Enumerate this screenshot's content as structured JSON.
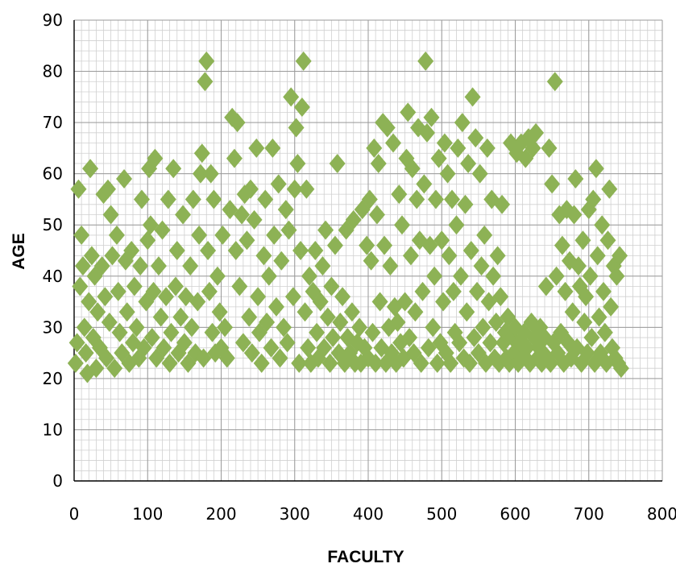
{
  "chart_data": {
    "type": "scatter",
    "title": "",
    "xlabel": "FACULTY",
    "ylabel": "AGE",
    "xlim": [
      0,
      800
    ],
    "ylim": [
      0,
      90
    ],
    "x_ticks": [
      "0",
      "100",
      "200",
      "300",
      "400",
      "500",
      "600",
      "700",
      "800"
    ],
    "y_ticks": [
      "0",
      "10",
      "20",
      "30",
      "40",
      "50",
      "60",
      "70",
      "80",
      "90"
    ],
    "grid": true,
    "legend": "none",
    "marker": "diamond",
    "marker_color": "#8DB255",
    "series": [
      {
        "points": [
          [
            2,
            23
          ],
          [
            4,
            27
          ],
          [
            6,
            57
          ],
          [
            8,
            38
          ],
          [
            10,
            48
          ],
          [
            12,
            42
          ],
          [
            14,
            30
          ],
          [
            16,
            25
          ],
          [
            18,
            21
          ],
          [
            20,
            35
          ],
          [
            22,
            61
          ],
          [
            24,
            44
          ],
          [
            26,
            28
          ],
          [
            28,
            40
          ],
          [
            30,
            22
          ],
          [
            32,
            33
          ],
          [
            35,
            26
          ],
          [
            38,
            42
          ],
          [
            40,
            56
          ],
          [
            42,
            36
          ],
          [
            44,
            24
          ],
          [
            46,
            57
          ],
          [
            48,
            31
          ],
          [
            50,
            52
          ],
          [
            52,
            44
          ],
          [
            55,
            22
          ],
          [
            58,
            48
          ],
          [
            60,
            37
          ],
          [
            62,
            29
          ],
          [
            65,
            25
          ],
          [
            68,
            59
          ],
          [
            70,
            43
          ],
          [
            72,
            33
          ],
          [
            75,
            23
          ],
          [
            78,
            45
          ],
          [
            80,
            27
          ],
          [
            82,
            38
          ],
          [
            85,
            30
          ],
          [
            88,
            24
          ],
          [
            90,
            42
          ],
          [
            92,
            55
          ],
          [
            95,
            26
          ],
          [
            98,
            35
          ],
          [
            100,
            47
          ],
          [
            102,
            61
          ],
          [
            104,
            50
          ],
          [
            106,
            28
          ],
          [
            108,
            37
          ],
          [
            110,
            63
          ],
          [
            112,
            24
          ],
          [
            115,
            42
          ],
          [
            118,
            32
          ],
          [
            120,
            49
          ],
          [
            122,
            26
          ],
          [
            125,
            36
          ],
          [
            128,
            55
          ],
          [
            130,
            23
          ],
          [
            132,
            29
          ],
          [
            135,
            61
          ],
          [
            138,
            38
          ],
          [
            140,
            45
          ],
          [
            142,
            25
          ],
          [
            145,
            32
          ],
          [
            148,
            52
          ],
          [
            150,
            27
          ],
          [
            152,
            36
          ],
          [
            155,
            23
          ],
          [
            158,
            42
          ],
          [
            160,
            30
          ],
          [
            162,
            55
          ],
          [
            165,
            25
          ],
          [
            168,
            35
          ],
          [
            170,
            48
          ],
          [
            172,
            60
          ],
          [
            174,
            64
          ],
          [
            176,
            24
          ],
          [
            178,
            78
          ],
          [
            180,
            82
          ],
          [
            182,
            45
          ],
          [
            184,
            37
          ],
          [
            186,
            60
          ],
          [
            188,
            29
          ],
          [
            190,
            55
          ],
          [
            192,
            25
          ],
          [
            195,
            40
          ],
          [
            198,
            33
          ],
          [
            200,
            26
          ],
          [
            202,
            48
          ],
          [
            205,
            30
          ],
          [
            208,
            24
          ],
          [
            212,
            53
          ],
          [
            215,
            71
          ],
          [
            218,
            63
          ],
          [
            220,
            45
          ],
          [
            222,
            70
          ],
          [
            225,
            38
          ],
          [
            228,
            52
          ],
          [
            230,
            27
          ],
          [
            232,
            56
          ],
          [
            235,
            47
          ],
          [
            238,
            32
          ],
          [
            240,
            57
          ],
          [
            242,
            25
          ],
          [
            245,
            51
          ],
          [
            248,
            65
          ],
          [
            250,
            36
          ],
          [
            252,
            29
          ],
          [
            255,
            23
          ],
          [
            258,
            44
          ],
          [
            260,
            55
          ],
          [
            262,
            31
          ],
          [
            265,
            40
          ],
          [
            268,
            26
          ],
          [
            270,
            65
          ],
          [
            272,
            48
          ],
          [
            275,
            34
          ],
          [
            278,
            58
          ],
          [
            280,
            24
          ],
          [
            282,
            43
          ],
          [
            285,
            30
          ],
          [
            288,
            53
          ],
          [
            290,
            27
          ],
          [
            292,
            49
          ],
          [
            295,
            75
          ],
          [
            298,
            36
          ],
          [
            300,
            57
          ],
          [
            302,
            69
          ],
          [
            304,
            62
          ],
          [
            306,
            23
          ],
          [
            308,
            45
          ],
          [
            310,
            73
          ],
          [
            312,
            82
          ],
          [
            314,
            33
          ],
          [
            316,
            57
          ],
          [
            318,
            26
          ],
          [
            320,
            40
          ],
          [
            322,
            23
          ],
          [
            325,
            37
          ],
          [
            328,
            45
          ],
          [
            330,
            29
          ],
          [
            332,
            24
          ],
          [
            335,
            35
          ],
          [
            338,
            42
          ],
          [
            340,
            26
          ],
          [
            342,
            49
          ],
          [
            345,
            32
          ],
          [
            348,
            23
          ],
          [
            350,
            38
          ],
          [
            352,
            28
          ],
          [
            355,
            46
          ],
          [
            358,
            62
          ],
          [
            360,
            25
          ],
          [
            362,
            31
          ],
          [
            365,
            36
          ],
          [
            368,
            23
          ],
          [
            370,
            49
          ],
          [
            372,
            28
          ],
          [
            375,
            25
          ],
          [
            378,
            33
          ],
          [
            380,
            51
          ],
          [
            382,
            23
          ],
          [
            385,
            27
          ],
          [
            388,
            30
          ],
          [
            390,
            23
          ],
          [
            392,
            53
          ],
          [
            395,
            26
          ],
          [
            398,
            46
          ],
          [
            400,
            24
          ],
          [
            402,
            55
          ],
          [
            404,
            43
          ],
          [
            406,
            29
          ],
          [
            408,
            65
          ],
          [
            410,
            23
          ],
          [
            412,
            52
          ],
          [
            414,
            62
          ],
          [
            416,
            35
          ],
          [
            418,
            26
          ],
          [
            420,
            70
          ],
          [
            422,
            46
          ],
          [
            424,
            23
          ],
          [
            426,
            69
          ],
          [
            428,
            30
          ],
          [
            430,
            42
          ],
          [
            432,
            25
          ],
          [
            434,
            66
          ],
          [
            436,
            34
          ],
          [
            438,
            23
          ],
          [
            440,
            31
          ],
          [
            442,
            56
          ],
          [
            444,
            27
          ],
          [
            446,
            50
          ],
          [
            448,
            24
          ],
          [
            450,
            35
          ],
          [
            452,
            63
          ],
          [
            454,
            72
          ],
          [
            456,
            28
          ],
          [
            458,
            44
          ],
          [
            460,
            61
          ],
          [
            462,
            25
          ],
          [
            464,
            33
          ],
          [
            466,
            55
          ],
          [
            468,
            69
          ],
          [
            470,
            47
          ],
          [
            472,
            23
          ],
          [
            474,
            37
          ],
          [
            476,
            58
          ],
          [
            478,
            82
          ],
          [
            480,
            68
          ],
          [
            482,
            26
          ],
          [
            484,
            46
          ],
          [
            486,
            71
          ],
          [
            488,
            30
          ],
          [
            490,
            40
          ],
          [
            492,
            55
          ],
          [
            494,
            23
          ],
          [
            496,
            63
          ],
          [
            498,
            27
          ],
          [
            500,
            47
          ],
          [
            502,
            35
          ],
          [
            504,
            66
          ],
          [
            506,
            25
          ],
          [
            508,
            60
          ],
          [
            510,
            44
          ],
          [
            512,
            23
          ],
          [
            514,
            55
          ],
          [
            516,
            37
          ],
          [
            518,
            29
          ],
          [
            520,
            50
          ],
          [
            522,
            65
          ],
          [
            524,
            27
          ],
          [
            526,
            40
          ],
          [
            528,
            70
          ],
          [
            530,
            24
          ],
          [
            532,
            54
          ],
          [
            534,
            33
          ],
          [
            536,
            62
          ],
          [
            538,
            23
          ],
          [
            540,
            45
          ],
          [
            542,
            75
          ],
          [
            544,
            28
          ],
          [
            546,
            67
          ],
          [
            548,
            37
          ],
          [
            550,
            25
          ],
          [
            552,
            60
          ],
          [
            554,
            42
          ],
          [
            556,
            30
          ],
          [
            558,
            48
          ],
          [
            560,
            23
          ],
          [
            562,
            65
          ],
          [
            564,
            35
          ],
          [
            566,
            27
          ],
          [
            568,
            55
          ],
          [
            570,
            40
          ],
          [
            572,
            24
          ],
          [
            574,
            31
          ],
          [
            576,
            44
          ],
          [
            578,
            23
          ],
          [
            580,
            36
          ],
          [
            582,
            54
          ],
          [
            584,
            27
          ],
          [
            586,
            29
          ],
          [
            588,
            24
          ],
          [
            590,
            32
          ],
          [
            592,
            23
          ],
          [
            594,
            66
          ],
          [
            596,
            28
          ],
          [
            598,
            25
          ],
          [
            600,
            30
          ],
          [
            602,
            64
          ],
          [
            604,
            23
          ],
          [
            606,
            27
          ],
          [
            608,
            66
          ],
          [
            610,
            24
          ],
          [
            612,
            29
          ],
          [
            614,
            63
          ],
          [
            616,
            26
          ],
          [
            618,
            67
          ],
          [
            620,
            23
          ],
          [
            622,
            31
          ],
          [
            624,
            65
          ],
          [
            626,
            28
          ],
          [
            628,
            68
          ],
          [
            630,
            24
          ],
          [
            632,
            26
          ],
          [
            634,
            30
          ],
          [
            636,
            23
          ],
          [
            638,
            25
          ],
          [
            640,
            28
          ],
          [
            642,
            38
          ],
          [
            644,
            24
          ],
          [
            646,
            65
          ],
          [
            648,
            23
          ],
          [
            650,
            58
          ],
          [
            652,
            27
          ],
          [
            654,
            78
          ],
          [
            656,
            40
          ],
          [
            658,
            25
          ],
          [
            660,
            52
          ],
          [
            662,
            29
          ],
          [
            664,
            46
          ],
          [
            666,
            23
          ],
          [
            668,
            37
          ],
          [
            670,
            53
          ],
          [
            672,
            27
          ],
          [
            674,
            43
          ],
          [
            676,
            24
          ],
          [
            678,
            33
          ],
          [
            680,
            52
          ],
          [
            682,
            59
          ],
          [
            684,
            26
          ],
          [
            686,
            42
          ],
          [
            688,
            38
          ],
          [
            690,
            23
          ],
          [
            692,
            47
          ],
          [
            694,
            31
          ],
          [
            696,
            36
          ],
          [
            698,
            25
          ],
          [
            700,
            53
          ],
          [
            702,
            40
          ],
          [
            704,
            28
          ],
          [
            706,
            55
          ],
          [
            708,
            23
          ],
          [
            710,
            61
          ],
          [
            712,
            44
          ],
          [
            714,
            32
          ],
          [
            716,
            25
          ],
          [
            718,
            50
          ],
          [
            720,
            37
          ],
          [
            722,
            29
          ],
          [
            724,
            23
          ],
          [
            726,
            47
          ],
          [
            728,
            57
          ],
          [
            730,
            34
          ],
          [
            732,
            26
          ],
          [
            734,
            42
          ],
          [
            736,
            24
          ],
          [
            738,
            40
          ],
          [
            740,
            23
          ],
          [
            742,
            44
          ],
          [
            744,
            22
          ]
        ]
      }
    ]
  }
}
